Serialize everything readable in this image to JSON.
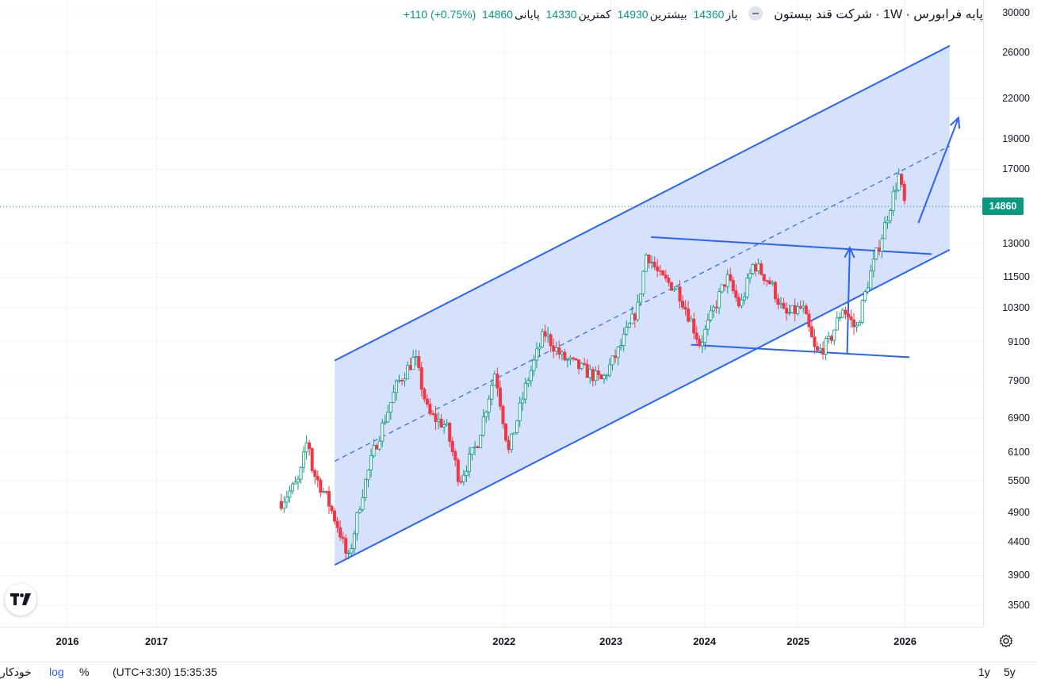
{
  "legend": {
    "title": "پایه فرابورس · 1W · شرکت قند بیستون",
    "open_label": "باز",
    "open_value": "14360",
    "high_label": "بیشترین",
    "high_value": "14930",
    "low_label": "کمترین",
    "low_value": "14330",
    "close_label": "پایانی",
    "close_value": "14860",
    "change": "+110 (+0.75%)"
  },
  "colors": {
    "up": "#089981",
    "down": "#f23645",
    "channel_line": "#2962ff",
    "channel_fill": "#cfdcfc"
  },
  "last_price": "14860",
  "bottom_bar": {
    "auto_label": "خودکار",
    "log_label": "log",
    "percent_label": "%",
    "timezone": "(UTC+3:30) 15:35:35",
    "range_1y": "1y",
    "range_5y": "5y"
  },
  "icons": {
    "logo": "tradingview-logo-icon",
    "settings": "gear-icon"
  },
  "chart_data": {
    "type": "candlestick",
    "interval": "1W",
    "y_scale": "log",
    "y_ticks": [
      30000,
      26000,
      22000,
      19000,
      17000,
      13000,
      11500,
      10300,
      9100,
      7900,
      6900,
      6100,
      5500,
      4900,
      4400,
      3900,
      3500
    ],
    "x_ticks": [
      "2016",
      "2017",
      "2022",
      "2023",
      "2024",
      "2025",
      "2026"
    ],
    "x_tick_pos": [
      0.0,
      1.0,
      4.9,
      6.1,
      7.15,
      8.2,
      9.4
    ],
    "price_path": [
      [
        2.4,
        5100
      ],
      [
        2.6,
        5500
      ],
      [
        2.7,
        6450
      ],
      [
        2.75,
        5700
      ],
      [
        2.9,
        5200
      ],
      [
        3.05,
        4600
      ],
      [
        3.15,
        4100
      ],
      [
        3.3,
        5200
      ],
      [
        3.45,
        6200
      ],
      [
        3.7,
        7800
      ],
      [
        3.9,
        8600
      ],
      [
        4.05,
        7000
      ],
      [
        4.25,
        6700
      ],
      [
        4.4,
        5500
      ],
      [
        4.6,
        6300
      ],
      [
        4.8,
        8200
      ],
      [
        4.95,
        6100
      ],
      [
        5.15,
        7800
      ],
      [
        5.35,
        9400
      ],
      [
        5.55,
        8600
      ],
      [
        5.8,
        8200
      ],
      [
        6.0,
        7900
      ],
      [
        6.2,
        8900
      ],
      [
        6.4,
        10300
      ],
      [
        6.5,
        12600
      ],
      [
        6.65,
        11500
      ],
      [
        6.85,
        11000
      ],
      [
        7.0,
        9800
      ],
      [
        7.1,
        9000
      ],
      [
        7.25,
        10200
      ],
      [
        7.4,
        11500
      ],
      [
        7.55,
        10300
      ],
      [
        7.7,
        12100
      ],
      [
        7.9,
        11200
      ],
      [
        8.05,
        10000
      ],
      [
        8.25,
        10300
      ],
      [
        8.4,
        8700
      ],
      [
        8.55,
        9100
      ],
      [
        8.7,
        10300
      ],
      [
        8.85,
        9500
      ],
      [
        9.0,
        11500
      ],
      [
        9.15,
        13500
      ],
      [
        9.25,
        15200
      ],
      [
        9.33,
        16600
      ],
      [
        9.4,
        14860
      ]
    ],
    "drawings": {
      "channel_upper": [
        [
          3.0,
          8500
        ],
        [
          9.9,
          26600
        ]
      ],
      "channel_median": [
        [
          3.0,
          5900
        ],
        [
          9.9,
          18500
        ]
      ],
      "channel_lower": [
        [
          3.0,
          4050
        ],
        [
          9.9,
          12700
        ]
      ],
      "wedge_top": [
        [
          6.55,
          13300
        ],
        [
          9.7,
          12500
        ]
      ],
      "wedge_bottom": [
        [
          7.0,
          9000
        ],
        [
          9.45,
          8600
        ]
      ],
      "vertical_arrow": [
        [
          8.75,
          8700
        ],
        [
          8.78,
          12800
        ]
      ],
      "projection_arrow": [
        [
          9.55,
          14000
        ],
        [
          10.0,
          20500
        ]
      ]
    }
  }
}
